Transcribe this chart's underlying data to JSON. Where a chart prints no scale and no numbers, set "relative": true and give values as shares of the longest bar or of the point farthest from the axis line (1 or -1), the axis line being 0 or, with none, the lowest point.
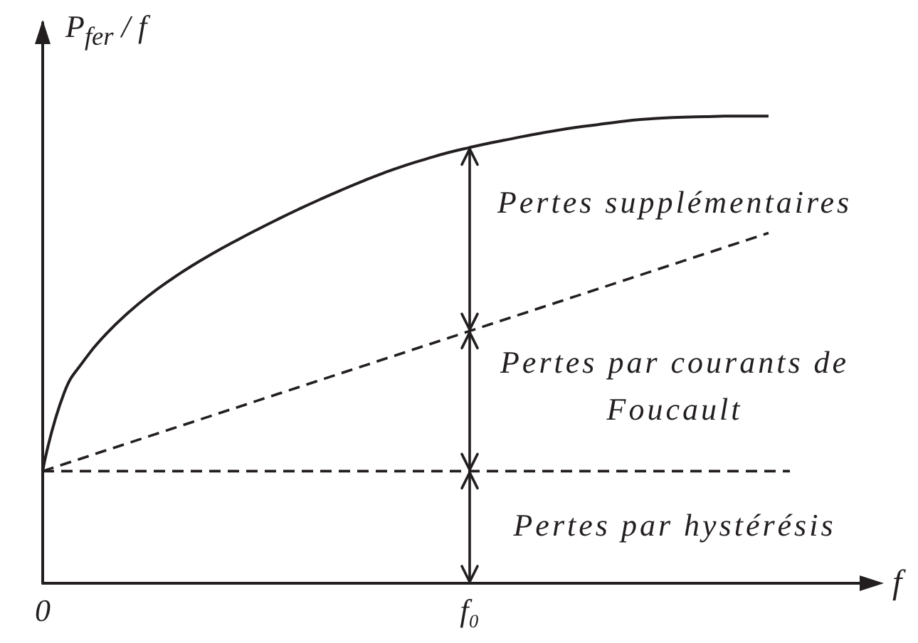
{
  "chart_data": {
    "type": "line",
    "relative": true,
    "marker": "none",
    "xlabel": "f",
    "ylabel": "P$_{fer}$ / f",
    "categories": [
      "0",
      null,
      null,
      null,
      null,
      null,
      null,
      null,
      null,
      null,
      null,
      null,
      null,
      null,
      null,
      null,
      null,
      null,
      null,
      null,
      "f₀",
      null,
      null,
      null,
      null,
      null,
      null,
      null,
      null,
      null,
      null,
      null,
      null,
      null,
      null,
      null,
      null,
      null,
      null,
      null
    ],
    "series": [
      {
        "color": "#231f20",
        "line_style": "solid",
        "values": [
          0.24,
          0.407,
          0.481,
          0.535,
          0.579,
          0.617,
          0.65,
          0.68,
          0.707,
          0.732,
          0.756,
          0.779,
          0.801,
          0.822,
          0.842,
          0.861,
          0.879,
          0.895,
          0.909,
          0.922,
          0.933,
          0.943,
          0.952,
          0.961,
          0.969,
          0.976,
          0.982,
          0.988,
          0.993,
          0.996,
          0.998,
          0.999,
          1.0,
          1.0,
          1.0,
          null,
          null,
          null,
          null,
          null
        ]
      },
      {
        "color": "#231f20",
        "line_style": "dashed",
        "values": [
          0.24,
          0.255,
          0.27,
          0.285,
          0.3,
          0.315,
          0.33,
          0.345,
          0.36,
          0.375,
          0.39,
          0.405,
          0.42,
          0.435,
          0.45,
          0.465,
          0.48,
          0.495,
          0.51,
          0.525,
          0.54,
          0.555,
          0.57,
          0.585,
          0.6,
          0.615,
          0.63,
          0.645,
          0.66,
          0.675,
          0.69,
          0.705,
          0.72,
          0.735,
          0.75,
          null,
          null,
          null,
          null,
          null
        ]
      },
      {
        "color": "#231f20",
        "line_style": "dashed",
        "values": [
          0.24,
          0.24,
          0.24,
          0.24,
          0.24,
          0.24,
          0.24,
          0.24,
          0.24,
          0.24,
          0.24,
          0.24,
          0.24,
          0.24,
          0.24,
          0.24,
          0.24,
          0.24,
          0.24,
          0.24,
          0.24,
          0.24,
          0.24,
          0.24,
          0.24,
          0.24,
          0.24,
          0.24,
          0.24,
          0.24,
          0.24,
          0.24,
          0.24,
          0.24,
          0.24,
          0.24,
          null,
          null,
          null,
          null
        ]
      }
    ],
    "annotations": [
      "Pertes supplémentaires",
      "Pertes par courants de Foucault",
      "Pertes par hystérésis"
    ]
  }
}
